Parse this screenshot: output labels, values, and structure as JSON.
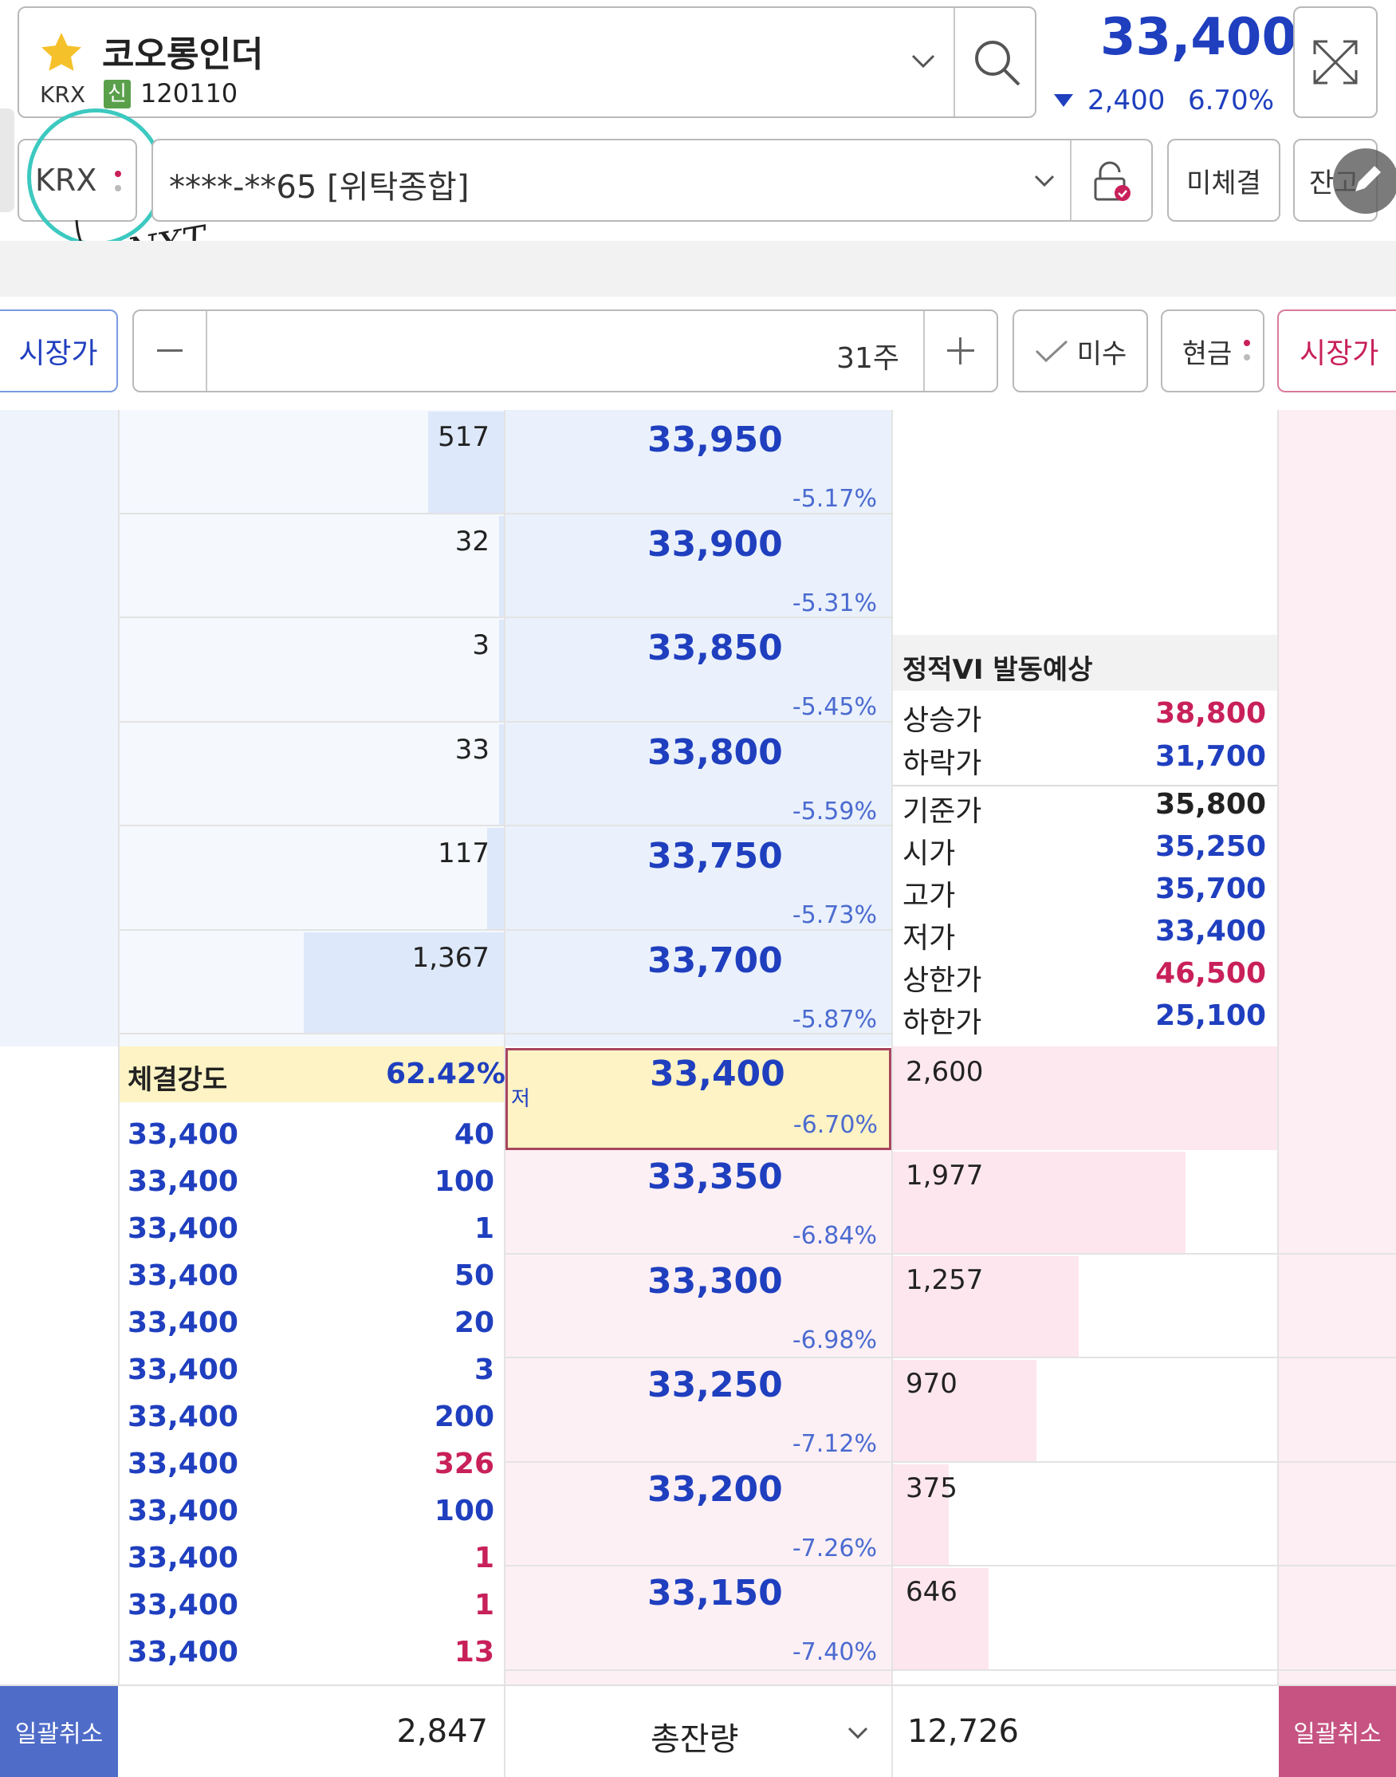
{
  "header": {
    "stock_name": "코오롱인더",
    "market": "KRX",
    "credit_badge": "신",
    "code": "120110",
    "price": "33,400",
    "change": "2,400",
    "change_pct": "6.70%"
  },
  "account": {
    "exchange": "KRX",
    "account_label": "****-**65 [위탁종합]",
    "unfilled_button": "미체결",
    "balance_button": "잔고",
    "annotation": "NXT"
  },
  "order": {
    "price_type": "시장가",
    "quantity": "31주",
    "margin_label": "미수",
    "cash_label": "현금",
    "order_type_right": "시장가"
  },
  "ask_levels": [
    {
      "qty": "517",
      "price": "33,950",
      "pct": "-5.17%"
    },
    {
      "qty": "32",
      "price": "33,900",
      "pct": "-5.31%"
    },
    {
      "qty": "3",
      "price": "33,850",
      "pct": "-5.45%"
    },
    {
      "qty": "33",
      "price": "33,800",
      "pct": "-5.59%"
    },
    {
      "qty": "117",
      "price": "33,750",
      "pct": "-5.73%"
    },
    {
      "qty": "1,367",
      "price": "33,700",
      "pct": "-5.87%"
    }
  ],
  "current_level": {
    "price": "33,400",
    "pct": "-6.70%",
    "marker": "저",
    "qty": "2,600"
  },
  "bid_levels": [
    {
      "price": "33,350",
      "pct": "-6.84%",
      "qty": "1,977"
    },
    {
      "price": "33,300",
      "pct": "-6.98%",
      "qty": "1,257"
    },
    {
      "price": "33,250",
      "pct": "-7.12%",
      "qty": "970"
    },
    {
      "price": "33,200",
      "pct": "-7.26%",
      "qty": "375"
    },
    {
      "price": "33,150",
      "pct": "-7.40%",
      "qty": "646"
    }
  ],
  "vi": {
    "title": "정적VI 발동예상",
    "rows": [
      {
        "label": "상승가",
        "value": "38,800"
      },
      {
        "label": "하락가",
        "value": "31,700"
      },
      {
        "label": "기준가",
        "value": "35,800"
      },
      {
        "label": "시가",
        "value": "35,250"
      },
      {
        "label": "고가",
        "value": "35,700"
      },
      {
        "label": "저가",
        "value": "33,400"
      },
      {
        "label": "상한가",
        "value": "46,500"
      },
      {
        "label": "하한가",
        "value": "25,100"
      }
    ]
  },
  "strength": {
    "label": "체결강도",
    "value": "62.42%"
  },
  "trades": [
    {
      "price": "33,400",
      "qty": "40"
    },
    {
      "price": "33,400",
      "qty": "100"
    },
    {
      "price": "33,400",
      "qty": "1"
    },
    {
      "price": "33,400",
      "qty": "50"
    },
    {
      "price": "33,400",
      "qty": "20"
    },
    {
      "price": "33,400",
      "qty": "3"
    },
    {
      "price": "33,400",
      "qty": "200"
    },
    {
      "price": "33,400",
      "qty": "326"
    },
    {
      "price": "33,400",
      "qty": "100"
    },
    {
      "price": "33,400",
      "qty": "1"
    },
    {
      "price": "33,400",
      "qty": "1"
    },
    {
      "price": "33,400",
      "qty": "13"
    }
  ],
  "footer": {
    "cancel_all_left": "일괄취소",
    "ask_total": "2,847",
    "total_label": "총잔량",
    "bid_total": "12,726",
    "cancel_all_right": "일괄취소"
  },
  "colors": {
    "blue": "#1f3fbf",
    "red": "#c8205a",
    "ask_bg": "#eef3fc",
    "bid_bg": "#fdeef3",
    "highlight": "#fdf3c4",
    "annotation": "#3cc9c0"
  }
}
